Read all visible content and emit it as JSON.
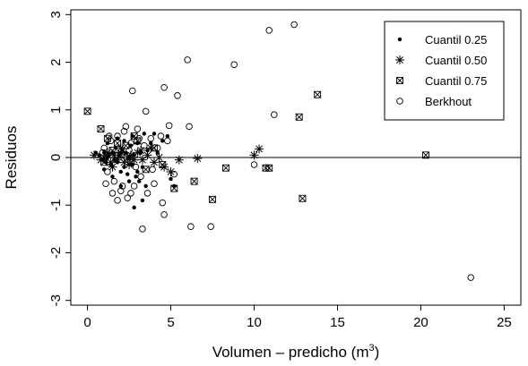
{
  "chart_data": {
    "type": "scatter",
    "xlabel": "Volumen – predicho (m",
    "xlabel_sup": "3",
    "xlabel_close": ")",
    "ylabel": "Residuos",
    "xlim": [
      -1,
      26
    ],
    "ylim": [
      -3.1,
      3.1
    ],
    "x_ticks": [
      0,
      5,
      10,
      15,
      20,
      25
    ],
    "y_ticks": [
      -3,
      -2,
      -1,
      0,
      1,
      2,
      3
    ],
    "reference_line_y": 0,
    "legend_position": "top-right",
    "series": [
      {
        "name": "Cuantil 0.25",
        "marker": "filled-circle",
        "points": [
          [
            0.5,
            0.1
          ],
          [
            0.7,
            0.05
          ],
          [
            0.9,
            -0.05
          ],
          [
            1.0,
            0.1
          ],
          [
            1.1,
            -0.1
          ],
          [
            1.2,
            0.0
          ],
          [
            1.3,
            0.05
          ],
          [
            1.4,
            -0.15
          ],
          [
            1.5,
            0.1
          ],
          [
            1.6,
            -0.05
          ],
          [
            1.7,
            0.2
          ],
          [
            1.8,
            -0.1
          ],
          [
            1.9,
            0.05
          ],
          [
            2.0,
            -0.3
          ],
          [
            2.1,
            0.15
          ],
          [
            2.2,
            -0.2
          ],
          [
            2.3,
            0.1
          ],
          [
            2.4,
            -0.35
          ],
          [
            2.5,
            0.0
          ],
          [
            2.6,
            0.25
          ],
          [
            2.7,
            -0.15
          ],
          [
            2.8,
            0.05
          ],
          [
            2.9,
            -0.4
          ],
          [
            3.0,
            0.3
          ],
          [
            3.1,
            -0.5
          ],
          [
            3.2,
            0.1
          ],
          [
            3.3,
            -0.2
          ],
          [
            3.4,
            0.5
          ],
          [
            3.5,
            -0.6
          ],
          [
            3.6,
            0.15
          ],
          [
            3.8,
            0.3
          ],
          [
            4.0,
            0.5
          ],
          [
            4.2,
            0.1
          ],
          [
            4.5,
            0.35
          ],
          [
            4.8,
            0.45
          ],
          [
            5.0,
            -0.45
          ],
          [
            5.2,
            -0.6
          ],
          [
            2.8,
            -1.05
          ],
          [
            3.3,
            -0.9
          ],
          [
            2.2,
            0.35
          ],
          [
            1.2,
            0.3
          ],
          [
            1.5,
            -0.4
          ],
          [
            1.8,
            0.4
          ],
          [
            2.0,
            -0.6
          ],
          [
            2.5,
            -0.5
          ],
          [
            2.7,
            0.45
          ],
          [
            3.0,
            -0.3
          ],
          [
            1.0,
            -0.25
          ]
        ]
      },
      {
        "name": "Cuantil 0.50",
        "marker": "asterisk",
        "points": [
          [
            0.4,
            0.05
          ],
          [
            0.8,
            -0.05
          ],
          [
            1.0,
            0.0
          ],
          [
            1.2,
            0.1
          ],
          [
            1.4,
            -0.1
          ],
          [
            1.6,
            0.05
          ],
          [
            1.8,
            -0.05
          ],
          [
            2.0,
            0.1
          ],
          [
            2.2,
            -0.1
          ],
          [
            2.4,
            0.0
          ],
          [
            2.6,
            0.05
          ],
          [
            2.8,
            -0.05
          ],
          [
            3.0,
            0.1
          ],
          [
            3.3,
            -0.05
          ],
          [
            3.6,
            0.05
          ],
          [
            4.0,
            -0.1
          ],
          [
            4.3,
            0.0
          ],
          [
            4.6,
            -0.2
          ],
          [
            5.0,
            -0.3
          ],
          [
            5.5,
            -0.05
          ],
          [
            6.6,
            -0.02
          ],
          [
            10.0,
            0.05
          ],
          [
            10.3,
            0.18
          ],
          [
            1.5,
            -0.2
          ],
          [
            2.0,
            0.2
          ],
          [
            2.5,
            -0.15
          ],
          [
            3.2,
            0.15
          ],
          [
            3.8,
            0.2
          ]
        ]
      },
      {
        "name": "Cuantil 0.75",
        "marker": "boxed-x",
        "points": [
          [
            0.0,
            0.97
          ],
          [
            0.8,
            0.6
          ],
          [
            1.2,
            0.4
          ],
          [
            1.5,
            0.15
          ],
          [
            1.8,
            0.3
          ],
          [
            2.0,
            0.05
          ],
          [
            2.3,
            0.25
          ],
          [
            2.6,
            -0.1
          ],
          [
            3.0,
            0.35
          ],
          [
            3.5,
            -0.25
          ],
          [
            4.0,
            0.2
          ],
          [
            4.5,
            -0.15
          ],
          [
            5.2,
            -0.65
          ],
          [
            6.4,
            -0.5
          ],
          [
            7.5,
            -0.88
          ],
          [
            8.3,
            -0.22
          ],
          [
            10.7,
            -0.22
          ],
          [
            10.9,
            -0.22
          ],
          [
            12.7,
            0.85
          ],
          [
            12.9,
            -0.86
          ],
          [
            13.8,
            1.32
          ],
          [
            20.3,
            0.05
          ],
          [
            1.0,
            -0.1
          ],
          [
            2.8,
            0.45
          ]
        ]
      },
      {
        "name": "Berkhout",
        "marker": "open-circle",
        "points": [
          [
            2.7,
            1.4
          ],
          [
            4.6,
            1.47
          ],
          [
            5.4,
            1.3
          ],
          [
            6.0,
            2.05
          ],
          [
            8.8,
            1.95
          ],
          [
            10.9,
            2.67
          ],
          [
            12.4,
            2.79
          ],
          [
            11.2,
            0.9
          ],
          [
            3.5,
            0.97
          ],
          [
            4.9,
            0.67
          ],
          [
            6.1,
            0.65
          ],
          [
            3.3,
            -1.5
          ],
          [
            4.6,
            -1.2
          ],
          [
            6.2,
            -1.45
          ],
          [
            7.4,
            -1.45
          ],
          [
            10.0,
            -0.15
          ],
          [
            23.0,
            -2.52
          ],
          [
            1.0,
            0.2
          ],
          [
            1.2,
            -0.3
          ],
          [
            1.4,
            0.35
          ],
          [
            1.6,
            -0.5
          ],
          [
            1.8,
            0.45
          ],
          [
            2.0,
            -0.7
          ],
          [
            2.2,
            0.55
          ],
          [
            2.4,
            -0.85
          ],
          [
            2.6,
            0.3
          ],
          [
            2.8,
            -0.6
          ],
          [
            3.0,
            0.6
          ],
          [
            3.2,
            -0.4
          ],
          [
            3.4,
            0.25
          ],
          [
            3.6,
            -0.75
          ],
          [
            3.8,
            0.4
          ],
          [
            4.0,
            -0.55
          ],
          [
            4.2,
            0.2
          ],
          [
            4.5,
            -0.95
          ],
          [
            4.8,
            0.35
          ],
          [
            5.2,
            -0.35
          ],
          [
            1.5,
            -0.75
          ],
          [
            1.8,
            -0.9
          ],
          [
            2.1,
            -0.6
          ],
          [
            2.3,
            0.65
          ],
          [
            2.6,
            -0.75
          ],
          [
            0.9,
            0.1
          ],
          [
            1.1,
            -0.55
          ],
          [
            1.3,
            0.45
          ],
          [
            3.1,
            0.4
          ],
          [
            3.9,
            -0.25
          ],
          [
            4.4,
            0.45
          ],
          [
            2.5,
            0.15
          ],
          [
            2.9,
            -0.2
          ]
        ]
      }
    ]
  }
}
